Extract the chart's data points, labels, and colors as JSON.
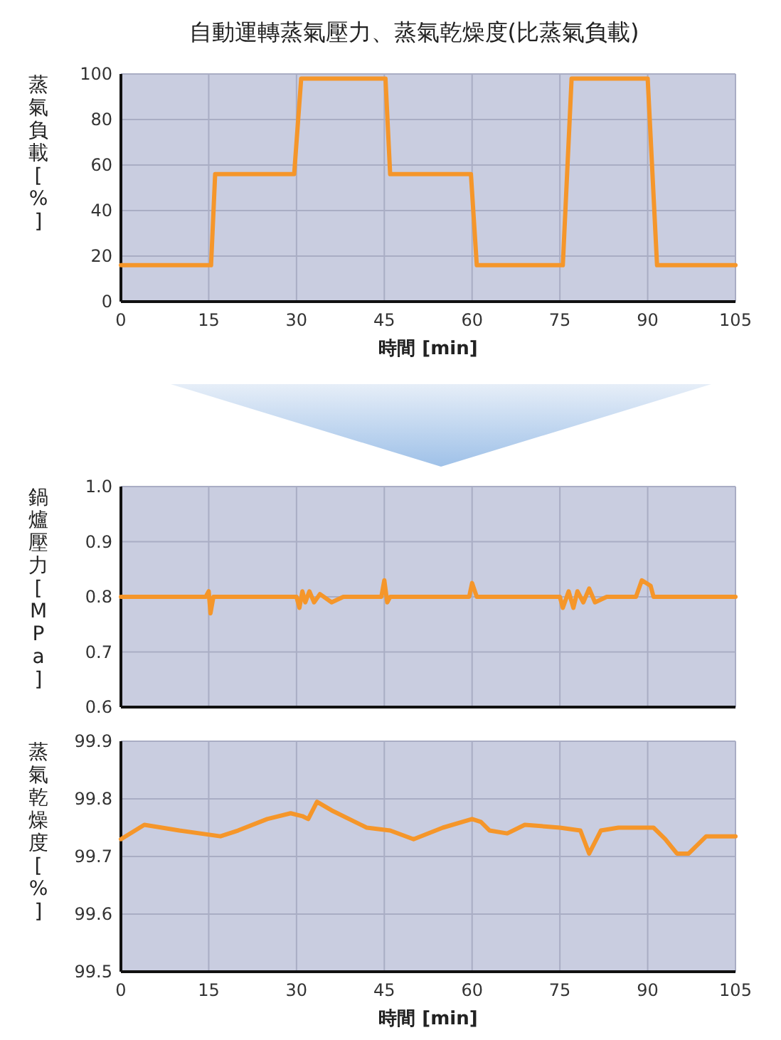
{
  "chart_data": [
    {
      "type": "line",
      "title": "自動運轉蒸氣壓力、蒸氣乾燥度(比蒸氣負載)",
      "xlabel": "時間 [min]",
      "ylabel": "蒸氣負載[%]",
      "xlim": [
        0,
        105
      ],
      "xticks": [
        0,
        15,
        30,
        45,
        60,
        75,
        90,
        105
      ],
      "ylim": [
        0,
        100
      ],
      "yticks": [
        0,
        20,
        40,
        60,
        80,
        100
      ],
      "grid": true,
      "series": [
        {
          "color": "#f5962a",
          "x": [
            0,
            15.4,
            16.1,
            29.6,
            30.8,
            45.2,
            46,
            59.8,
            60.8,
            75.5,
            77,
            90,
            91.6,
            105
          ],
          "values": [
            16,
            16,
            56,
            56,
            98,
            98,
            56,
            56,
            16,
            16,
            98,
            98,
            16,
            16
          ]
        }
      ]
    },
    {
      "type": "line",
      "ylabel": "鍋爐壓力[MPa]",
      "xlim": [
        0,
        105
      ],
      "ylim": [
        0.6,
        1.0
      ],
      "yticks": [
        {
          "value": 0.6,
          "label": "0.6"
        },
        {
          "value": 0.7,
          "label": "0.7"
        },
        {
          "value": 0.8,
          "label": "0.8"
        },
        {
          "value": 0.9,
          "label": "0.9"
        },
        {
          "value": 1.0,
          "label": "1.0"
        }
      ],
      "xticks": [
        0,
        15,
        30,
        45,
        60,
        75,
        90,
        105
      ],
      "tick_labels": "y",
      "grid": true,
      "series": [
        {
          "color": "#f5962a",
          "x": [
            0,
            14.5,
            15,
            15.3,
            15.8,
            30,
            30.5,
            31,
            31.5,
            32.2,
            33,
            34,
            36,
            38,
            44.5,
            45,
            45.5,
            46,
            59.5,
            60,
            60.8,
            75,
            75.5,
            76.5,
            77.3,
            78,
            79,
            80,
            81,
            83,
            88,
            89,
            90.5,
            91,
            105
          ],
          "values": [
            0.8,
            0.8,
            0.81,
            0.77,
            0.8,
            0.8,
            0.78,
            0.81,
            0.79,
            0.81,
            0.79,
            0.805,
            0.79,
            0.8,
            0.8,
            0.83,
            0.79,
            0.8,
            0.8,
            0.825,
            0.8,
            0.8,
            0.78,
            0.81,
            0.78,
            0.81,
            0.79,
            0.815,
            0.79,
            0.8,
            0.8,
            0.83,
            0.82,
            0.8,
            0.8
          ]
        }
      ]
    },
    {
      "type": "line",
      "xlabel": "時間 [min]",
      "ylabel": "蒸氣乾燥度[%]",
      "xlim": [
        0,
        105
      ],
      "xticks": [
        0,
        15,
        30,
        45,
        60,
        75,
        90,
        105
      ],
      "ylim": [
        99.5,
        99.9
      ],
      "yticks": [
        {
          "value": 99.5,
          "label": "99.5"
        },
        {
          "value": 99.6,
          "label": "99.6"
        },
        {
          "value": 99.7,
          "label": "99.7"
        },
        {
          "value": 99.8,
          "label": "99.8"
        },
        {
          "value": 99.9,
          "label": "99.9"
        }
      ],
      "grid": true,
      "series": [
        {
          "color": "#f5962a",
          "x": [
            0,
            4,
            10,
            17,
            20,
            25,
            29,
            31,
            32,
            33.5,
            36,
            42,
            46,
            50,
            55,
            60,
            61.5,
            63,
            66,
            69,
            75,
            78.5,
            80,
            82,
            85,
            91,
            93,
            95,
            97,
            100,
            105
          ],
          "values": [
            99.73,
            99.755,
            99.745,
            99.735,
            99.745,
            99.765,
            99.775,
            99.77,
            99.765,
            99.795,
            99.78,
            99.75,
            99.745,
            99.73,
            99.75,
            99.765,
            99.76,
            99.745,
            99.74,
            99.755,
            99.75,
            99.745,
            99.705,
            99.745,
            99.75,
            99.75,
            99.73,
            99.705,
            99.705,
            99.735,
            99.735
          ]
        }
      ]
    }
  ]
}
